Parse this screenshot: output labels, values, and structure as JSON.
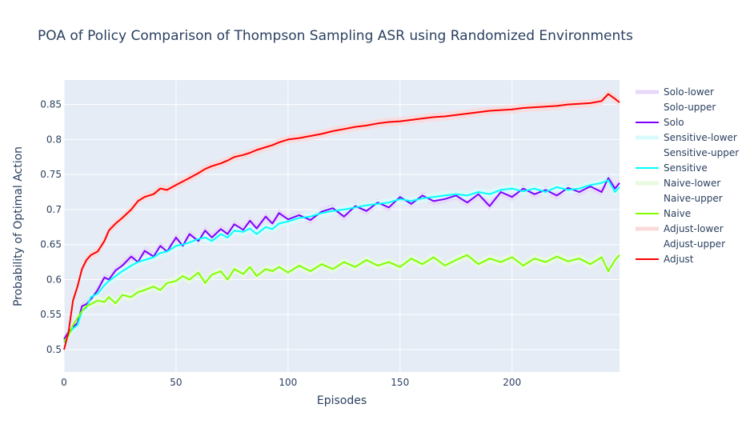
{
  "chart_data": {
    "type": "line",
    "title": "POA of Policy Comparison of Thompson Sampling ASR using Randomized Environments",
    "xlabel": "Episodes",
    "ylabel": "Probability of Optimal Action",
    "xlim": [
      0,
      248
    ],
    "ylim": [
      0.468,
      0.885
    ],
    "x_ticks": [
      0,
      50,
      100,
      150,
      200
    ],
    "x_tick_labels": [
      "0",
      "50",
      "100",
      "150",
      "200"
    ],
    "y_ticks": [
      0.5,
      0.55,
      0.6,
      0.65,
      0.7,
      0.75,
      0.8,
      0.85
    ],
    "y_tick_labels": [
      "0.5",
      "0.55",
      "0.6",
      "0.65",
      "0.7",
      "0.75",
      "0.8",
      "0.85"
    ],
    "grid": true,
    "legend_position": "right",
    "legend": [
      "Solo-lower",
      "Solo-upper",
      "Solo",
      "Sensitive-lower",
      "Sensitive-upper",
      "Sensitive",
      "Naive-lower",
      "Naive-upper",
      "Naive",
      "Adjust-lower",
      "Adjust-upper",
      "Adjust"
    ],
    "band_half_width": 0.006,
    "series": [
      {
        "name": "Solo",
        "color": "#7f00ff",
        "band_color": "#e8d8f8",
        "x": [
          0,
          2,
          4,
          6,
          8,
          10,
          12,
          15,
          18,
          20,
          23,
          26,
          30,
          33,
          36,
          40,
          43,
          46,
          50,
          53,
          56,
          60,
          63,
          66,
          70,
          73,
          76,
          80,
          83,
          86,
          90,
          93,
          96,
          100,
          105,
          110,
          115,
          120,
          125,
          130,
          135,
          140,
          145,
          150,
          155,
          160,
          165,
          170,
          175,
          180,
          185,
          190,
          195,
          200,
          205,
          210,
          215,
          220,
          225,
          230,
          235,
          240,
          243,
          246,
          248
        ],
        "y": [
          0.515,
          0.525,
          0.532,
          0.538,
          0.562,
          0.565,
          0.572,
          0.585,
          0.603,
          0.6,
          0.613,
          0.62,
          0.633,
          0.625,
          0.641,
          0.633,
          0.648,
          0.64,
          0.66,
          0.648,
          0.665,
          0.655,
          0.67,
          0.66,
          0.672,
          0.665,
          0.679,
          0.671,
          0.684,
          0.673,
          0.69,
          0.68,
          0.695,
          0.686,
          0.692,
          0.685,
          0.697,
          0.702,
          0.69,
          0.705,
          0.698,
          0.71,
          0.703,
          0.718,
          0.708,
          0.72,
          0.712,
          0.715,
          0.72,
          0.71,
          0.722,
          0.705,
          0.725,
          0.718,
          0.73,
          0.722,
          0.728,
          0.72,
          0.731,
          0.725,
          0.733,
          0.725,
          0.745,
          0.73,
          0.738
        ]
      },
      {
        "name": "Sensitive",
        "color": "#00ffff",
        "band_color": "#d9fbfb",
        "x": [
          0,
          2,
          4,
          6,
          8,
          10,
          12,
          15,
          18,
          20,
          23,
          26,
          30,
          33,
          36,
          40,
          43,
          46,
          50,
          53,
          56,
          60,
          63,
          66,
          70,
          73,
          76,
          80,
          83,
          86,
          90,
          93,
          96,
          100,
          105,
          110,
          115,
          120,
          125,
          130,
          135,
          140,
          145,
          150,
          155,
          160,
          165,
          170,
          175,
          180,
          185,
          190,
          195,
          200,
          205,
          210,
          215,
          220,
          225,
          230,
          235,
          240,
          243,
          246,
          248
        ],
        "y": [
          0.51,
          0.522,
          0.53,
          0.535,
          0.555,
          0.56,
          0.575,
          0.58,
          0.592,
          0.598,
          0.605,
          0.612,
          0.62,
          0.625,
          0.628,
          0.632,
          0.638,
          0.64,
          0.648,
          0.65,
          0.653,
          0.658,
          0.66,
          0.655,
          0.665,
          0.66,
          0.67,
          0.668,
          0.673,
          0.665,
          0.675,
          0.672,
          0.68,
          0.683,
          0.688,
          0.69,
          0.695,
          0.698,
          0.7,
          0.703,
          0.706,
          0.708,
          0.71,
          0.715,
          0.712,
          0.716,
          0.718,
          0.72,
          0.722,
          0.72,
          0.725,
          0.722,
          0.728,
          0.73,
          0.726,
          0.73,
          0.725,
          0.732,
          0.728,
          0.73,
          0.735,
          0.738,
          0.742,
          0.725,
          0.732
        ]
      },
      {
        "name": "Naive",
        "color": "#80ff00",
        "band_color": "#e8fadf",
        "x": [
          0,
          2,
          4,
          6,
          8,
          10,
          12,
          15,
          18,
          20,
          23,
          26,
          30,
          33,
          36,
          40,
          43,
          46,
          50,
          53,
          56,
          60,
          63,
          66,
          70,
          73,
          76,
          80,
          83,
          86,
          90,
          93,
          96,
          100,
          105,
          110,
          115,
          120,
          125,
          130,
          135,
          140,
          145,
          150,
          155,
          160,
          165,
          170,
          175,
          180,
          185,
          190,
          195,
          200,
          205,
          210,
          215,
          220,
          225,
          230,
          235,
          240,
          243,
          246,
          248
        ],
        "y": [
          0.512,
          0.52,
          0.535,
          0.545,
          0.555,
          0.562,
          0.565,
          0.57,
          0.568,
          0.575,
          0.566,
          0.578,
          0.575,
          0.582,
          0.585,
          0.59,
          0.585,
          0.595,
          0.598,
          0.605,
          0.6,
          0.61,
          0.595,
          0.607,
          0.612,
          0.6,
          0.615,
          0.608,
          0.618,
          0.605,
          0.615,
          0.612,
          0.618,
          0.61,
          0.62,
          0.612,
          0.622,
          0.615,
          0.625,
          0.618,
          0.628,
          0.62,
          0.625,
          0.618,
          0.63,
          0.622,
          0.632,
          0.62,
          0.628,
          0.635,
          0.622,
          0.63,
          0.625,
          0.632,
          0.62,
          0.63,
          0.625,
          0.633,
          0.626,
          0.63,
          0.622,
          0.632,
          0.612,
          0.628,
          0.635
        ]
      },
      {
        "name": "Adjust",
        "color": "#ff0000",
        "band_color": "#fadada",
        "x": [
          0,
          2,
          4,
          6,
          8,
          10,
          12,
          15,
          18,
          20,
          23,
          26,
          30,
          33,
          36,
          40,
          43,
          46,
          50,
          53,
          56,
          60,
          63,
          66,
          70,
          73,
          76,
          80,
          83,
          86,
          90,
          93,
          96,
          100,
          105,
          110,
          115,
          120,
          125,
          130,
          135,
          140,
          145,
          150,
          155,
          160,
          165,
          170,
          175,
          180,
          185,
          190,
          195,
          200,
          205,
          210,
          215,
          220,
          225,
          230,
          235,
          240,
          243,
          246,
          248
        ],
        "y": [
          0.5,
          0.525,
          0.57,
          0.59,
          0.615,
          0.628,
          0.635,
          0.64,
          0.655,
          0.67,
          0.68,
          0.688,
          0.7,
          0.712,
          0.718,
          0.722,
          0.73,
          0.728,
          0.735,
          0.74,
          0.745,
          0.752,
          0.758,
          0.762,
          0.766,
          0.77,
          0.775,
          0.778,
          0.781,
          0.785,
          0.789,
          0.792,
          0.796,
          0.8,
          0.802,
          0.805,
          0.808,
          0.812,
          0.815,
          0.818,
          0.82,
          0.823,
          0.825,
          0.826,
          0.828,
          0.83,
          0.832,
          0.833,
          0.835,
          0.837,
          0.839,
          0.841,
          0.842,
          0.843,
          0.845,
          0.846,
          0.847,
          0.848,
          0.85,
          0.851,
          0.852,
          0.855,
          0.865,
          0.858,
          0.853
        ]
      }
    ]
  }
}
